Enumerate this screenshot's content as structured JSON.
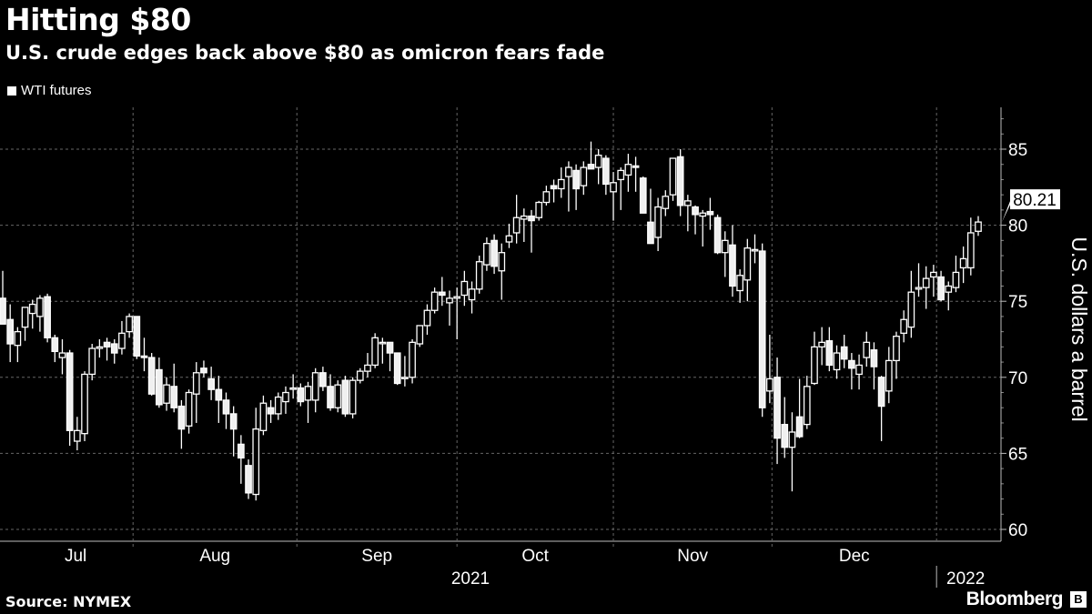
{
  "header": {
    "title": "Hitting $80",
    "subtitle": "U.S. crude edges back above $80 as omicron fears fade"
  },
  "footer": {
    "source": "Source: NYMEX",
    "brand": "Bloomberg"
  },
  "chart_data": {
    "type": "candlestick",
    "title": "Hitting $80",
    "subtitle": "U.S. crude edges back above $80 as omicron fears fade",
    "legend": [
      {
        "name": "WTI futures",
        "color": "#ffffff"
      }
    ],
    "legend_position": "top-left",
    "ylabel": "U.S. dollars a barrel",
    "y_axis_side": "right",
    "ylim": [
      59.5,
      87.5
    ],
    "yticks": [
      60,
      65,
      70,
      75,
      80,
      85
    ],
    "grid": true,
    "last_value_label": "80.21",
    "ohlc_format": [
      "open",
      "high",
      "low",
      "close"
    ],
    "candles": [
      [
        75.2,
        77.0,
        73.5,
        73.5
      ],
      [
        73.8,
        74.8,
        71.0,
        72.2
      ],
      [
        72.1,
        73.3,
        71.0,
        73.0
      ],
      [
        73.3,
        74.6,
        72.4,
        74.6
      ],
      [
        74.2,
        75.1,
        73.2,
        74.8
      ],
      [
        74.0,
        75.4,
        73.0,
        75.2
      ],
      [
        75.3,
        75.5,
        72.3,
        72.6
      ],
      [
        72.6,
        72.8,
        71.0,
        71.7
      ],
      [
        71.3,
        72.5,
        70.2,
        71.6
      ],
      [
        71.6,
        71.8,
        65.5,
        66.5
      ],
      [
        65.8,
        67.4,
        65.2,
        66.5
      ],
      [
        66.3,
        70.4,
        65.8,
        70.2
      ],
      [
        70.2,
        72.2,
        69.8,
        71.9
      ],
      [
        71.9,
        72.5,
        71.3,
        72.0
      ],
      [
        72.3,
        72.6,
        71.1,
        72.0
      ],
      [
        72.2,
        72.5,
        70.9,
        71.6
      ],
      [
        71.9,
        73.7,
        71.5,
        72.9
      ],
      [
        73.0,
        74.2,
        72.6,
        74.0
      ],
      [
        74.0,
        74.0,
        71.2,
        71.4
      ],
      [
        71.4,
        72.6,
        70.4,
        71.3
      ],
      [
        71.3,
        71.6,
        68.8,
        68.9
      ],
      [
        70.5,
        71.3,
        68.0,
        68.2
      ],
      [
        68.3,
        70.0,
        67.8,
        69.5
      ],
      [
        69.4,
        70.9,
        67.7,
        68.0
      ],
      [
        68.1,
        68.5,
        65.3,
        66.6
      ],
      [
        66.8,
        69.2,
        66.3,
        69.0
      ],
      [
        68.9,
        71.0,
        67.0,
        70.3
      ],
      [
        70.6,
        71.1,
        70.0,
        70.3
      ],
      [
        69.9,
        70.7,
        68.5,
        69.2
      ],
      [
        69.2,
        70.1,
        67.0,
        68.5
      ],
      [
        68.5,
        69.0,
        66.6,
        67.6
      ],
      [
        67.6,
        68.1,
        64.8,
        66.6
      ],
      [
        65.6,
        66.2,
        63.0,
        64.7
      ],
      [
        64.2,
        64.6,
        62.0,
        62.4
      ],
      [
        62.3,
        68.0,
        61.9,
        66.6
      ],
      [
        66.5,
        68.8,
        66.2,
        68.3
      ],
      [
        68.0,
        68.5,
        67.0,
        67.6
      ],
      [
        67.6,
        69.0,
        67.2,
        68.7
      ],
      [
        68.4,
        69.4,
        67.6,
        69.0
      ],
      [
        69.3,
        70.2,
        68.6,
        69.3
      ],
      [
        69.3,
        69.6,
        68.1,
        68.4
      ],
      [
        68.5,
        69.7,
        67.0,
        69.4
      ],
      [
        68.5,
        70.6,
        67.7,
        70.3
      ],
      [
        70.3,
        70.7,
        69.1,
        69.4
      ],
      [
        69.4,
        70.2,
        67.8,
        68.0
      ],
      [
        68.0,
        69.8,
        67.7,
        69.5
      ],
      [
        69.8,
        70.1,
        67.4,
        67.6
      ],
      [
        67.6,
        70.0,
        67.3,
        69.8
      ],
      [
        69.8,
        70.6,
        69.6,
        70.4
      ],
      [
        70.4,
        71.6,
        70.0,
        70.8
      ],
      [
        70.8,
        72.9,
        70.6,
        72.6
      ],
      [
        72.3,
        72.6,
        70.9,
        72.3
      ],
      [
        72.3,
        72.3,
        70.4,
        71.6
      ],
      [
        71.6,
        71.6,
        69.5,
        69.6
      ],
      [
        70.0,
        71.4,
        69.4,
        70.0
      ],
      [
        70.0,
        72.5,
        69.6,
        72.3
      ],
      [
        72.2,
        73.4,
        72.0,
        73.4
      ],
      [
        73.4,
        74.8,
        72.8,
        74.4
      ],
      [
        74.4,
        75.9,
        74.2,
        75.6
      ],
      [
        75.6,
        76.6,
        74.7,
        75.4
      ],
      [
        74.9,
        75.7,
        73.4,
        75.2
      ],
      [
        75.2,
        75.9,
        72.5,
        75.3
      ],
      [
        75.4,
        77.0,
        74.7,
        76.3
      ],
      [
        75.1,
        76.3,
        74.2,
        75.8
      ],
      [
        75.8,
        78.0,
        75.5,
        77.6
      ],
      [
        77.4,
        79.2,
        77.0,
        78.8
      ],
      [
        79.0,
        79.4,
        76.8,
        77.3
      ],
      [
        77.0,
        78.8,
        75.1,
        78.2
      ],
      [
        78.9,
        80.1,
        78.5,
        79.3
      ],
      [
        79.5,
        82.0,
        78.8,
        80.5
      ],
      [
        80.4,
        81.1,
        78.9,
        80.6
      ],
      [
        80.6,
        81.0,
        78.2,
        80.3
      ],
      [
        80.5,
        81.6,
        80.3,
        81.5
      ],
      [
        81.5,
        82.6,
        81.3,
        82.2
      ],
      [
        82.6,
        83.0,
        81.5,
        82.4
      ],
      [
        82.4,
        83.8,
        81.8,
        83.0
      ],
      [
        83.2,
        84.2,
        80.9,
        83.8
      ],
      [
        83.6,
        84.0,
        81.0,
        82.4
      ],
      [
        82.6,
        84.2,
        82.0,
        83.8
      ],
      [
        84.0,
        85.5,
        83.8,
        83.7
      ],
      [
        83.8,
        85.0,
        82.7,
        84.6
      ],
      [
        84.4,
        84.6,
        82.0,
        82.7
      ],
      [
        82.2,
        83.5,
        80.3,
        82.8
      ],
      [
        83.0,
        83.8,
        81.0,
        83.6
      ],
      [
        83.3,
        84.7,
        82.2,
        84.0
      ],
      [
        83.9,
        84.5,
        82.2,
        83.8
      ],
      [
        83.1,
        83.2,
        81.0,
        80.8
      ],
      [
        80.2,
        82.4,
        78.8,
        78.8
      ],
      [
        79.2,
        81.8,
        78.3,
        81.2
      ],
      [
        81.1,
        82.3,
        80.6,
        81.9
      ],
      [
        82.0,
        84.4,
        81.6,
        84.4
      ],
      [
        84.5,
        85.0,
        80.6,
        81.3
      ],
      [
        81.3,
        82.0,
        79.6,
        81.6
      ],
      [
        81.2,
        81.3,
        79.4,
        80.7
      ],
      [
        80.6,
        81.0,
        78.6,
        80.8
      ],
      [
        80.9,
        81.8,
        79.7,
        80.7
      ],
      [
        80.5,
        80.7,
        78.1,
        78.2
      ],
      [
        78.2,
        79.6,
        76.6,
        79.0
      ],
      [
        78.7,
        80.0,
        75.3,
        76.0
      ],
      [
        75.7,
        77.1,
        74.9,
        76.7
      ],
      [
        76.4,
        79.1,
        75.0,
        78.5
      ],
      [
        78.4,
        79.4,
        77.5,
        78.4
      ],
      [
        78.3,
        78.8,
        67.4,
        68.0
      ],
      [
        69.1,
        72.8,
        68.3,
        69.9
      ],
      [
        70.0,
        71.3,
        64.3,
        66.0
      ],
      [
        66.9,
        68.7,
        64.7,
        65.4
      ],
      [
        65.4,
        67.7,
        62.5,
        66.4
      ],
      [
        67.4,
        69.9,
        66.0,
        66.1
      ],
      [
        66.9,
        70.1,
        66.6,
        69.4
      ],
      [
        69.6,
        73.0,
        69.5,
        72.0
      ],
      [
        72.0,
        73.3,
        70.8,
        72.3
      ],
      [
        72.4,
        73.3,
        70.4,
        70.8
      ],
      [
        70.5,
        72.1,
        69.9,
        71.6
      ],
      [
        72.0,
        72.8,
        70.6,
        71.2
      ],
      [
        71.1,
        71.6,
        69.2,
        70.6
      ],
      [
        70.2,
        71.5,
        69.2,
        70.8
      ],
      [
        71.3,
        73.0,
        70.7,
        72.3
      ],
      [
        71.8,
        72.3,
        69.2,
        70.7
      ],
      [
        70.0,
        70.1,
        65.8,
        68.1
      ],
      [
        69.1,
        72.0,
        68.3,
        71.1
      ],
      [
        71.1,
        73.0,
        69.9,
        72.7
      ],
      [
        72.9,
        74.4,
        72.3,
        73.8
      ],
      [
        73.3,
        77.0,
        72.6,
        75.6
      ],
      [
        75.8,
        77.5,
        75.3,
        75.9
      ],
      [
        75.9,
        77.3,
        74.5,
        76.5
      ],
      [
        76.6,
        77.4,
        75.3,
        76.9
      ],
      [
        76.6,
        77.0,
        75.0,
        75.1
      ],
      [
        75.6,
        76.3,
        74.4,
        76.0
      ],
      [
        75.9,
        78.0,
        75.6,
        76.9
      ],
      [
        77.2,
        78.6,
        76.2,
        77.8
      ],
      [
        77.2,
        80.5,
        76.7,
        79.5
      ],
      [
        79.6,
        80.6,
        79.3,
        80.21
      ]
    ],
    "x_ticks": [
      {
        "label": "Jul",
        "start_index": 0,
        "end_index": 18
      },
      {
        "label": "Aug",
        "start_index": 18,
        "end_index": 40
      },
      {
        "label": "Sep",
        "start_index": 40,
        "end_index": 61.5
      },
      {
        "label": "Oct",
        "start_index": 61.5,
        "end_index": 82.5
      },
      {
        "label": "Nov",
        "start_index": 82.5,
        "end_index": 103.8
      },
      {
        "label": "Dec",
        "start_index": 103.8,
        "end_index": 125.9
      }
    ],
    "year_labels": [
      {
        "label": "2021"
      },
      {
        "label": "2022"
      }
    ]
  }
}
